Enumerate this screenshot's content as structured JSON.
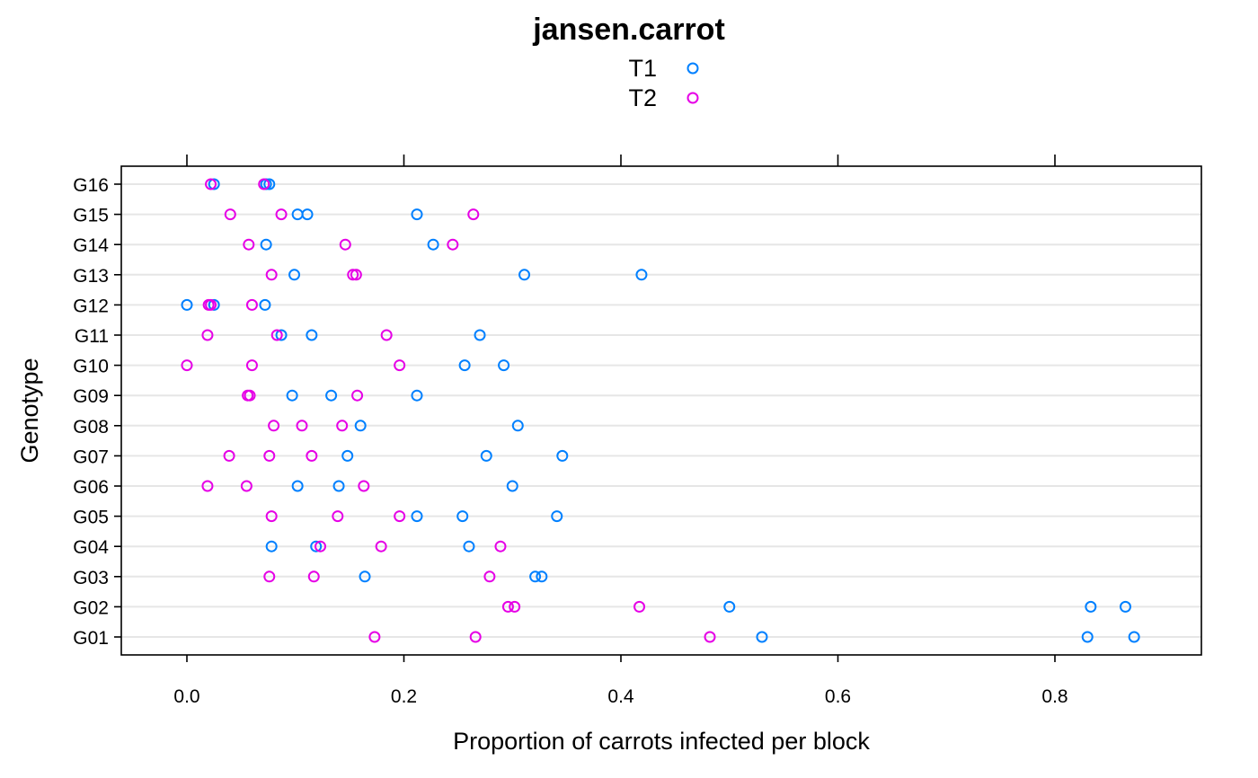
{
  "chart_data": {
    "type": "scatter",
    "title": "jansen.carrot",
    "xlabel": "Proportion of carrots infected per block",
    "ylabel": "Genotype",
    "xlim": [
      -0.06,
      0.935
    ],
    "x_ticks": [
      "0.0",
      "0.2",
      "0.4",
      "0.6",
      "0.8"
    ],
    "x_tick_values": [
      0.0,
      0.2,
      0.4,
      0.6,
      0.8
    ],
    "categories": [
      "G01",
      "G02",
      "G03",
      "G04",
      "G05",
      "G06",
      "G07",
      "G08",
      "G09",
      "G10",
      "G11",
      "G12",
      "G13",
      "G14",
      "G15",
      "G16"
    ],
    "grid": true,
    "legend_position": "top",
    "series": [
      {
        "name": "T1",
        "color": "#0080ff",
        "points": {
          "G16": [
            0.025,
            0.073,
            0.076
          ],
          "G15": [
            0.102,
            0.111,
            0.212
          ],
          "G14": [
            0.073,
            0.227
          ],
          "G13": [
            0.099,
            0.311,
            0.419
          ],
          "G12": [
            0.0,
            0.025,
            0.072
          ],
          "G11": [
            0.087,
            0.115,
            0.27
          ],
          "G10": [
            0.256,
            0.292
          ],
          "G09": [
            0.097,
            0.133,
            0.212
          ],
          "G08": [
            0.16,
            0.305
          ],
          "G07": [
            0.148,
            0.276,
            0.346
          ],
          "G06": [
            0.102,
            0.14,
            0.3
          ],
          "G05": [
            0.212,
            0.254,
            0.341
          ],
          "G04": [
            0.078,
            0.119,
            0.26
          ],
          "G03": [
            0.164,
            0.321,
            0.327
          ],
          "G02": [
            0.5,
            0.833,
            0.865
          ],
          "G01": [
            0.53,
            0.83,
            0.873
          ]
        }
      },
      {
        "name": "T2",
        "color": "#e600e6",
        "points": {
          "G16": [
            0.022,
            0.071
          ],
          "G15": [
            0.04,
            0.087,
            0.264
          ],
          "G14": [
            0.057,
            0.146,
            0.245
          ],
          "G13": [
            0.078,
            0.153,
            0.156
          ],
          "G12": [
            0.02,
            0.022,
            0.06
          ],
          "G11": [
            0.019,
            0.083,
            0.184
          ],
          "G10": [
            0.0,
            0.06,
            0.196
          ],
          "G09": [
            0.056,
            0.058,
            0.157
          ],
          "G08": [
            0.08,
            0.106,
            0.143
          ],
          "G07": [
            0.039,
            0.076,
            0.115
          ],
          "G06": [
            0.019,
            0.055,
            0.163
          ],
          "G05": [
            0.078,
            0.139,
            0.196
          ],
          "G04": [
            0.123,
            0.179,
            0.289
          ],
          "G03": [
            0.076,
            0.117,
            0.279
          ],
          "G02": [
            0.296,
            0.302,
            0.417
          ],
          "G01": [
            0.173,
            0.266,
            0.482
          ]
        }
      }
    ]
  }
}
